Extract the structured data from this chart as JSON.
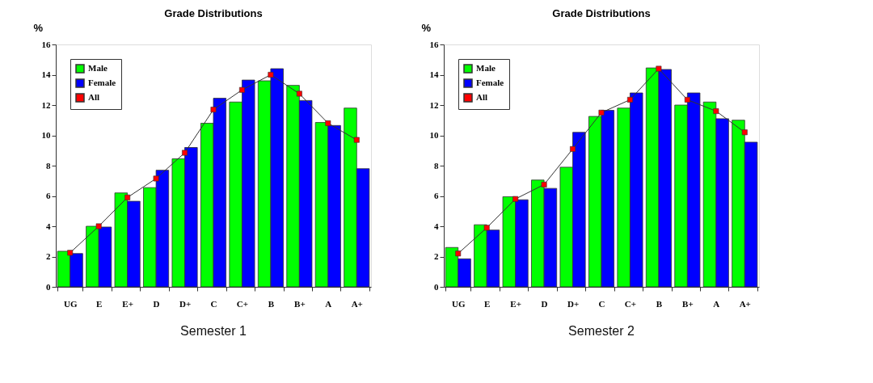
{
  "chart_data": [
    {
      "type": "bar",
      "title": "Grade Distributions",
      "ylabel": "%",
      "categories": [
        "UG",
        "E",
        "E+",
        "D",
        "D+",
        "C",
        "C+",
        "B",
        "B+",
        "A",
        "A+"
      ],
      "ylim": [
        0,
        16
      ],
      "yticks": [
        0,
        2,
        4,
        6,
        8,
        10,
        12,
        14,
        16
      ],
      "grid": false,
      "legend": "top left",
      "marker": "square",
      "annotations": [
        "Semester 1"
      ],
      "series": [
        {
          "name": "Male",
          "color": "#00ff00",
          "values": [
            2.35,
            4.0,
            6.2,
            6.55,
            8.45,
            10.8,
            12.2,
            13.6,
            13.3,
            10.85,
            11.8
          ]
        },
        {
          "name": "Female",
          "color": "#0000ff",
          "values": [
            2.2,
            3.95,
            5.65,
            7.7,
            9.2,
            12.45,
            13.65,
            14.4,
            12.3,
            10.65,
            7.8
          ]
        },
        {
          "name": "All",
          "type": "line",
          "color": "#ff0000",
          "values": [
            2.25,
            4.0,
            5.9,
            7.15,
            8.85,
            11.7,
            13.0,
            14.0,
            12.75,
            10.8,
            9.7
          ]
        }
      ]
    },
    {
      "type": "bar",
      "title": "Grade Distributions",
      "ylabel": "%",
      "categories": [
        "UG",
        "E",
        "E+",
        "D",
        "D+",
        "C",
        "C+",
        "B",
        "B+",
        "A",
        "A+"
      ],
      "ylim": [
        0,
        16
      ],
      "yticks": [
        0,
        2,
        4,
        6,
        8,
        10,
        12,
        14,
        16
      ],
      "grid": false,
      "legend": "top left",
      "marker": "square",
      "annotations": [
        "Semester 2"
      ],
      "series": [
        {
          "name": "Male",
          "color": "#00ff00",
          "values": [
            2.6,
            4.1,
            5.95,
            7.05,
            7.9,
            11.25,
            11.8,
            14.45,
            12.0,
            12.2,
            11.0
          ]
        },
        {
          "name": "Female",
          "color": "#0000ff",
          "values": [
            1.85,
            3.75,
            5.75,
            6.5,
            10.2,
            11.65,
            12.8,
            14.35,
            12.8,
            11.1,
            9.55
          ]
        },
        {
          "name": "All",
          "type": "line",
          "color": "#ff0000",
          "values": [
            2.2,
            3.9,
            5.8,
            6.75,
            9.1,
            11.5,
            12.35,
            14.4,
            12.35,
            11.6,
            10.2
          ]
        }
      ]
    }
  ]
}
